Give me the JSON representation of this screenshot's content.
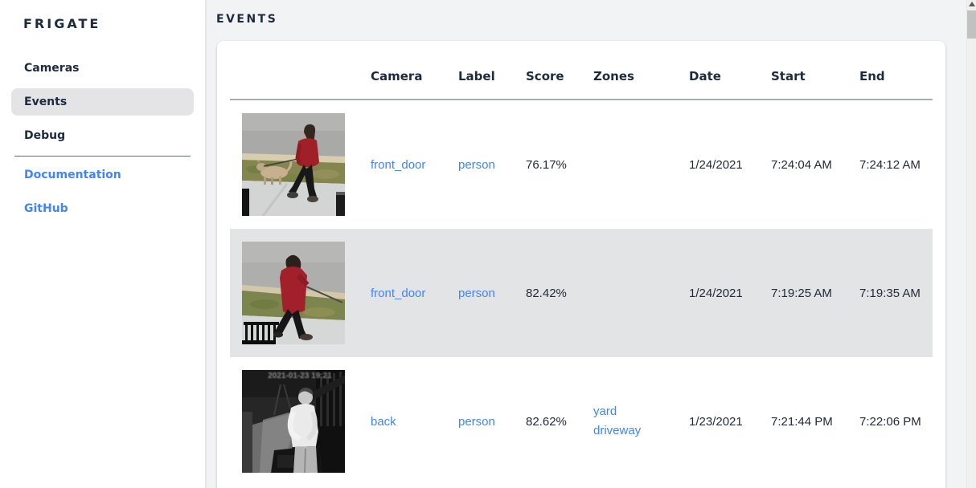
{
  "app": {
    "title": "FRIGATE"
  },
  "colors": {
    "accent_blue": "#4285f4",
    "heading_navy": "#1d2b3f",
    "row_highlight": "#e3e4e6",
    "main_background": "#f2f3f5"
  },
  "sidebar": {
    "items": [
      {
        "label": "Cameras",
        "selected": false
      },
      {
        "label": "Events",
        "selected": true
      },
      {
        "label": "Debug",
        "selected": false
      }
    ],
    "links": [
      {
        "label": "Documentation"
      },
      {
        "label": "GitHub"
      }
    ]
  },
  "page": {
    "title": "EVENTS"
  },
  "table": {
    "columns": [
      "Camera",
      "Label",
      "Score",
      "Zones",
      "Date",
      "Start",
      "End"
    ],
    "rows": [
      {
        "camera": "front_door",
        "label": "person",
        "score": "76.17%",
        "zones": [],
        "date": "1/24/2021",
        "start": "7:24:04 AM",
        "end": "7:24:12 AM",
        "thumb": "person-red-coat-walking-dog-daytime",
        "highlighted": false
      },
      {
        "camera": "front_door",
        "label": "person",
        "score": "82.42%",
        "zones": [],
        "date": "1/24/2021",
        "start": "7:19:25 AM",
        "end": "7:19:35 AM",
        "thumb": "person-red-hoodie-holding-leash-daytime",
        "highlighted": true
      },
      {
        "camera": "back",
        "label": "person",
        "score": "82.62%",
        "zones": [
          "yard",
          "driveway"
        ],
        "date": "1/23/2021",
        "start": "7:21:44 PM",
        "end": "7:22:06 PM",
        "thumb": "person-white-shirt-night-infrared",
        "thumb_overlay_text": "2021-01-23 19:21",
        "highlighted": false
      }
    ]
  }
}
